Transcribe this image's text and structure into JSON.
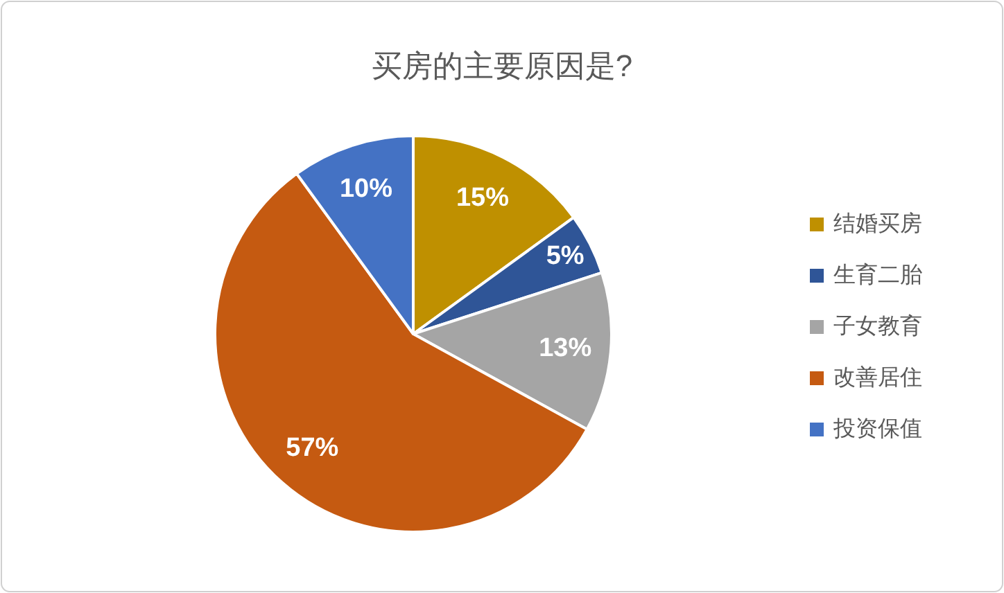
{
  "chart_data": {
    "type": "pie",
    "title": "买房的主要原因是?",
    "categories": [
      "结婚买房",
      "生育二胎",
      "子女教育",
      "改善居住",
      "投资保值"
    ],
    "values": [
      15,
      5,
      13,
      57,
      10
    ],
    "colors": [
      "#bf9000",
      "#2f5597",
      "#a5a5a5",
      "#c55a11",
      "#4472c4"
    ],
    "value_labels": [
      "15%",
      "5%",
      "13%",
      "57%",
      "10%"
    ],
    "legend": "right"
  }
}
